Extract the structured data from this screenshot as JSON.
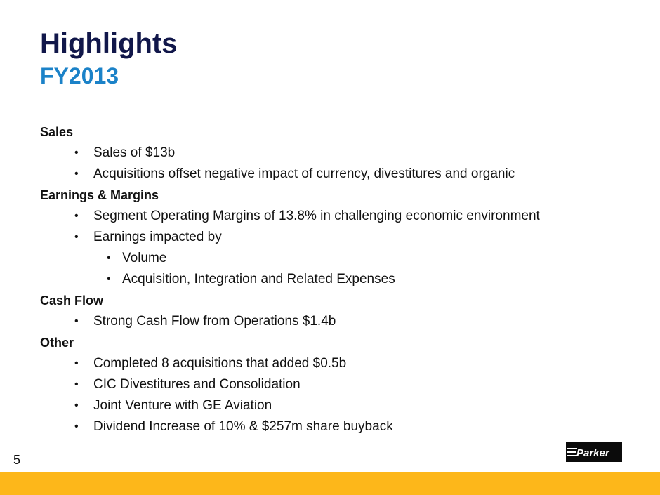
{
  "header": {
    "title": "Highlights",
    "subtitle": "FY2013"
  },
  "sections": [
    {
      "heading": "Sales",
      "items": [
        {
          "text": "Sales of $13b"
        },
        {
          "text": "Acquisitions offset negative impact of currency, divestitures and organic"
        }
      ]
    },
    {
      "heading": "Earnings & Margins",
      "items": [
        {
          "text": "Segment Operating Margins of 13.8% in challenging economic environment"
        },
        {
          "text": "Earnings impacted by"
        },
        {
          "text": "Volume"
        },
        {
          "text": "Acquisition, Integration and Related Expenses"
        }
      ]
    },
    {
      "heading": "Cash Flow",
      "items": [
        {
          "text": "Strong Cash Flow from Operations $1.4b"
        }
      ]
    },
    {
      "heading": "Other",
      "items": [
        {
          "text": "Completed 8 acquisitions that added $0.5b"
        },
        {
          "text": "CIC Divestitures and Consolidation"
        },
        {
          "text": "Joint Venture with GE Aviation"
        },
        {
          "text": "Dividend Increase of 10% & $257m share buyback"
        }
      ]
    }
  ],
  "bullet_glyph": "•",
  "footer": {
    "page_number": "5",
    "logo_text": "Parker"
  },
  "colors": {
    "title": "#11174a",
    "subtitle": "#1b82c8",
    "footer_bar": "#fdb71a",
    "logo_bg": "#0b0b0b"
  }
}
